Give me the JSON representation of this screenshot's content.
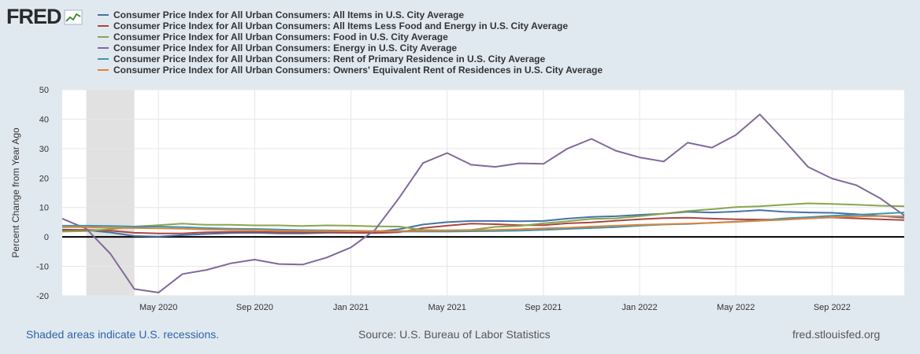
{
  "brand": {
    "logo_text": "FRED"
  },
  "footer": {
    "recession_note": "Shaded areas indicate U.S. recessions.",
    "source": "Source: U.S. Bureau of Labor Statistics",
    "site": "fred.stlouisfed.org"
  },
  "chart_data": {
    "type": "line",
    "title": "",
    "xlabel": "",
    "ylabel": "Percent Change from Year Ago",
    "ylim": [
      -20,
      50
    ],
    "yticks": [
      -20,
      -10,
      0,
      10,
      20,
      30,
      40,
      50
    ],
    "ytick_labels": [
      "-20",
      "-10",
      "0",
      "10",
      "20",
      "30",
      "40",
      "50"
    ],
    "x_range": [
      "2020-01",
      "2022-12"
    ],
    "x": [
      "2020-01",
      "2020-02",
      "2020-03",
      "2020-04",
      "2020-05",
      "2020-06",
      "2020-07",
      "2020-08",
      "2020-09",
      "2020-10",
      "2020-11",
      "2020-12",
      "2021-01",
      "2021-02",
      "2021-03",
      "2021-04",
      "2021-05",
      "2021-06",
      "2021-07",
      "2021-08",
      "2021-09",
      "2021-10",
      "2021-11",
      "2021-12",
      "2022-01",
      "2022-02",
      "2022-03",
      "2022-04",
      "2022-05",
      "2022-06",
      "2022-07",
      "2022-08",
      "2022-09",
      "2022-10",
      "2022-11",
      "2022-12"
    ],
    "xtick_labels": [
      {
        "month": "2020-05",
        "label": "May 2020"
      },
      {
        "month": "2020-09",
        "label": "Sep 2020"
      },
      {
        "month": "2021-01",
        "label": "Jan 2021"
      },
      {
        "month": "2021-05",
        "label": "May 2021"
      },
      {
        "month": "2021-09",
        "label": "Sep 2021"
      },
      {
        "month": "2022-01",
        "label": "Jan 2022"
      },
      {
        "month": "2022-05",
        "label": "May 2022"
      },
      {
        "month": "2022-09",
        "label": "Sep 2022"
      }
    ],
    "recession": {
      "start": "2020-02",
      "end": "2020-04"
    },
    "grid": true,
    "series": [
      {
        "name": "Consumer Price Index for All Urban Consumers: All Items in U.S. City Average",
        "color": "#4572a7",
        "values": [
          2.5,
          2.3,
          1.5,
          0.3,
          0.1,
          0.6,
          1.0,
          1.3,
          1.4,
          1.2,
          1.2,
          1.4,
          1.4,
          1.7,
          2.6,
          4.2,
          5.0,
          5.4,
          5.4,
          5.3,
          5.4,
          6.2,
          6.8,
          7.0,
          7.5,
          7.9,
          8.5,
          8.3,
          8.6,
          9.1,
          8.5,
          8.3,
          8.2,
          7.7,
          7.1,
          6.5
        ]
      },
      {
        "name": "Consumer Price Index for All Urban Consumers: All Items Less Food and Energy in U.S. City Average",
        "color": "#aa4643",
        "values": [
          2.3,
          2.4,
          2.1,
          1.4,
          1.2,
          1.2,
          1.6,
          1.7,
          1.7,
          1.6,
          1.6,
          1.6,
          1.4,
          1.3,
          1.6,
          3.0,
          3.8,
          4.5,
          4.3,
          4.0,
          4.0,
          4.6,
          4.9,
          5.5,
          6.0,
          6.4,
          6.5,
          6.2,
          6.0,
          5.9,
          5.9,
          6.3,
          6.6,
          6.3,
          6.0,
          5.7
        ]
      },
      {
        "name": "Consumer Price Index for All Urban Consumers: Food in U.S. City Average",
        "color": "#89a54e",
        "values": [
          1.8,
          2.0,
          2.6,
          3.5,
          4.0,
          4.5,
          4.1,
          4.1,
          3.9,
          3.9,
          3.7,
          3.9,
          3.8,
          3.6,
          3.5,
          2.4,
          2.2,
          2.4,
          3.4,
          3.7,
          4.6,
          5.3,
          6.1,
          6.3,
          7.0,
          7.9,
          8.8,
          9.4,
          10.1,
          10.4,
          10.9,
          11.4,
          11.2,
          10.9,
          10.6,
          10.4
        ]
      },
      {
        "name": "Consumer Price Index for All Urban Consumers: Energy in U.S. City Average",
        "color": "#80699b",
        "values": [
          6.2,
          2.8,
          -5.7,
          -17.7,
          -18.9,
          -12.6,
          -11.2,
          -9.0,
          -7.7,
          -9.2,
          -9.4,
          -7.0,
          -3.6,
          2.4,
          13.2,
          25.1,
          28.5,
          24.5,
          23.8,
          25.0,
          24.8,
          30.0,
          33.3,
          29.3,
          27.0,
          25.6,
          32.0,
          30.3,
          34.6,
          41.6,
          32.9,
          23.8,
          19.8,
          17.6,
          13.1,
          7.3
        ]
      },
      {
        "name": "Consumer Price Index for All Urban Consumers: Rent of Primary Residence in U.S. City Average",
        "color": "#3d96ae",
        "values": [
          3.8,
          3.8,
          3.7,
          3.5,
          3.5,
          3.3,
          3.0,
          2.8,
          2.7,
          2.5,
          2.3,
          2.2,
          2.1,
          2.0,
          1.8,
          1.8,
          1.8,
          1.9,
          2.0,
          2.1,
          2.4,
          2.7,
          3.0,
          3.3,
          3.8,
          4.2,
          4.4,
          4.8,
          5.2,
          5.6,
          6.3,
          6.7,
          7.2,
          7.5,
          7.9,
          8.3
        ]
      },
      {
        "name": "Consumer Price Index for All Urban Consumers: Owners' Equivalent Rent of Residences in U.S. City Average",
        "color": "#db843d",
        "values": [
          3.3,
          3.3,
          3.1,
          3.0,
          2.9,
          2.8,
          2.5,
          2.4,
          2.3,
          2.1,
          2.0,
          2.0,
          2.0,
          2.0,
          2.0,
          2.1,
          2.2,
          2.3,
          2.4,
          2.6,
          2.9,
          3.1,
          3.5,
          3.8,
          4.1,
          4.3,
          4.5,
          4.8,
          5.1,
          5.5,
          5.8,
          6.3,
          6.7,
          6.9,
          7.1,
          7.0
        ]
      }
    ]
  }
}
